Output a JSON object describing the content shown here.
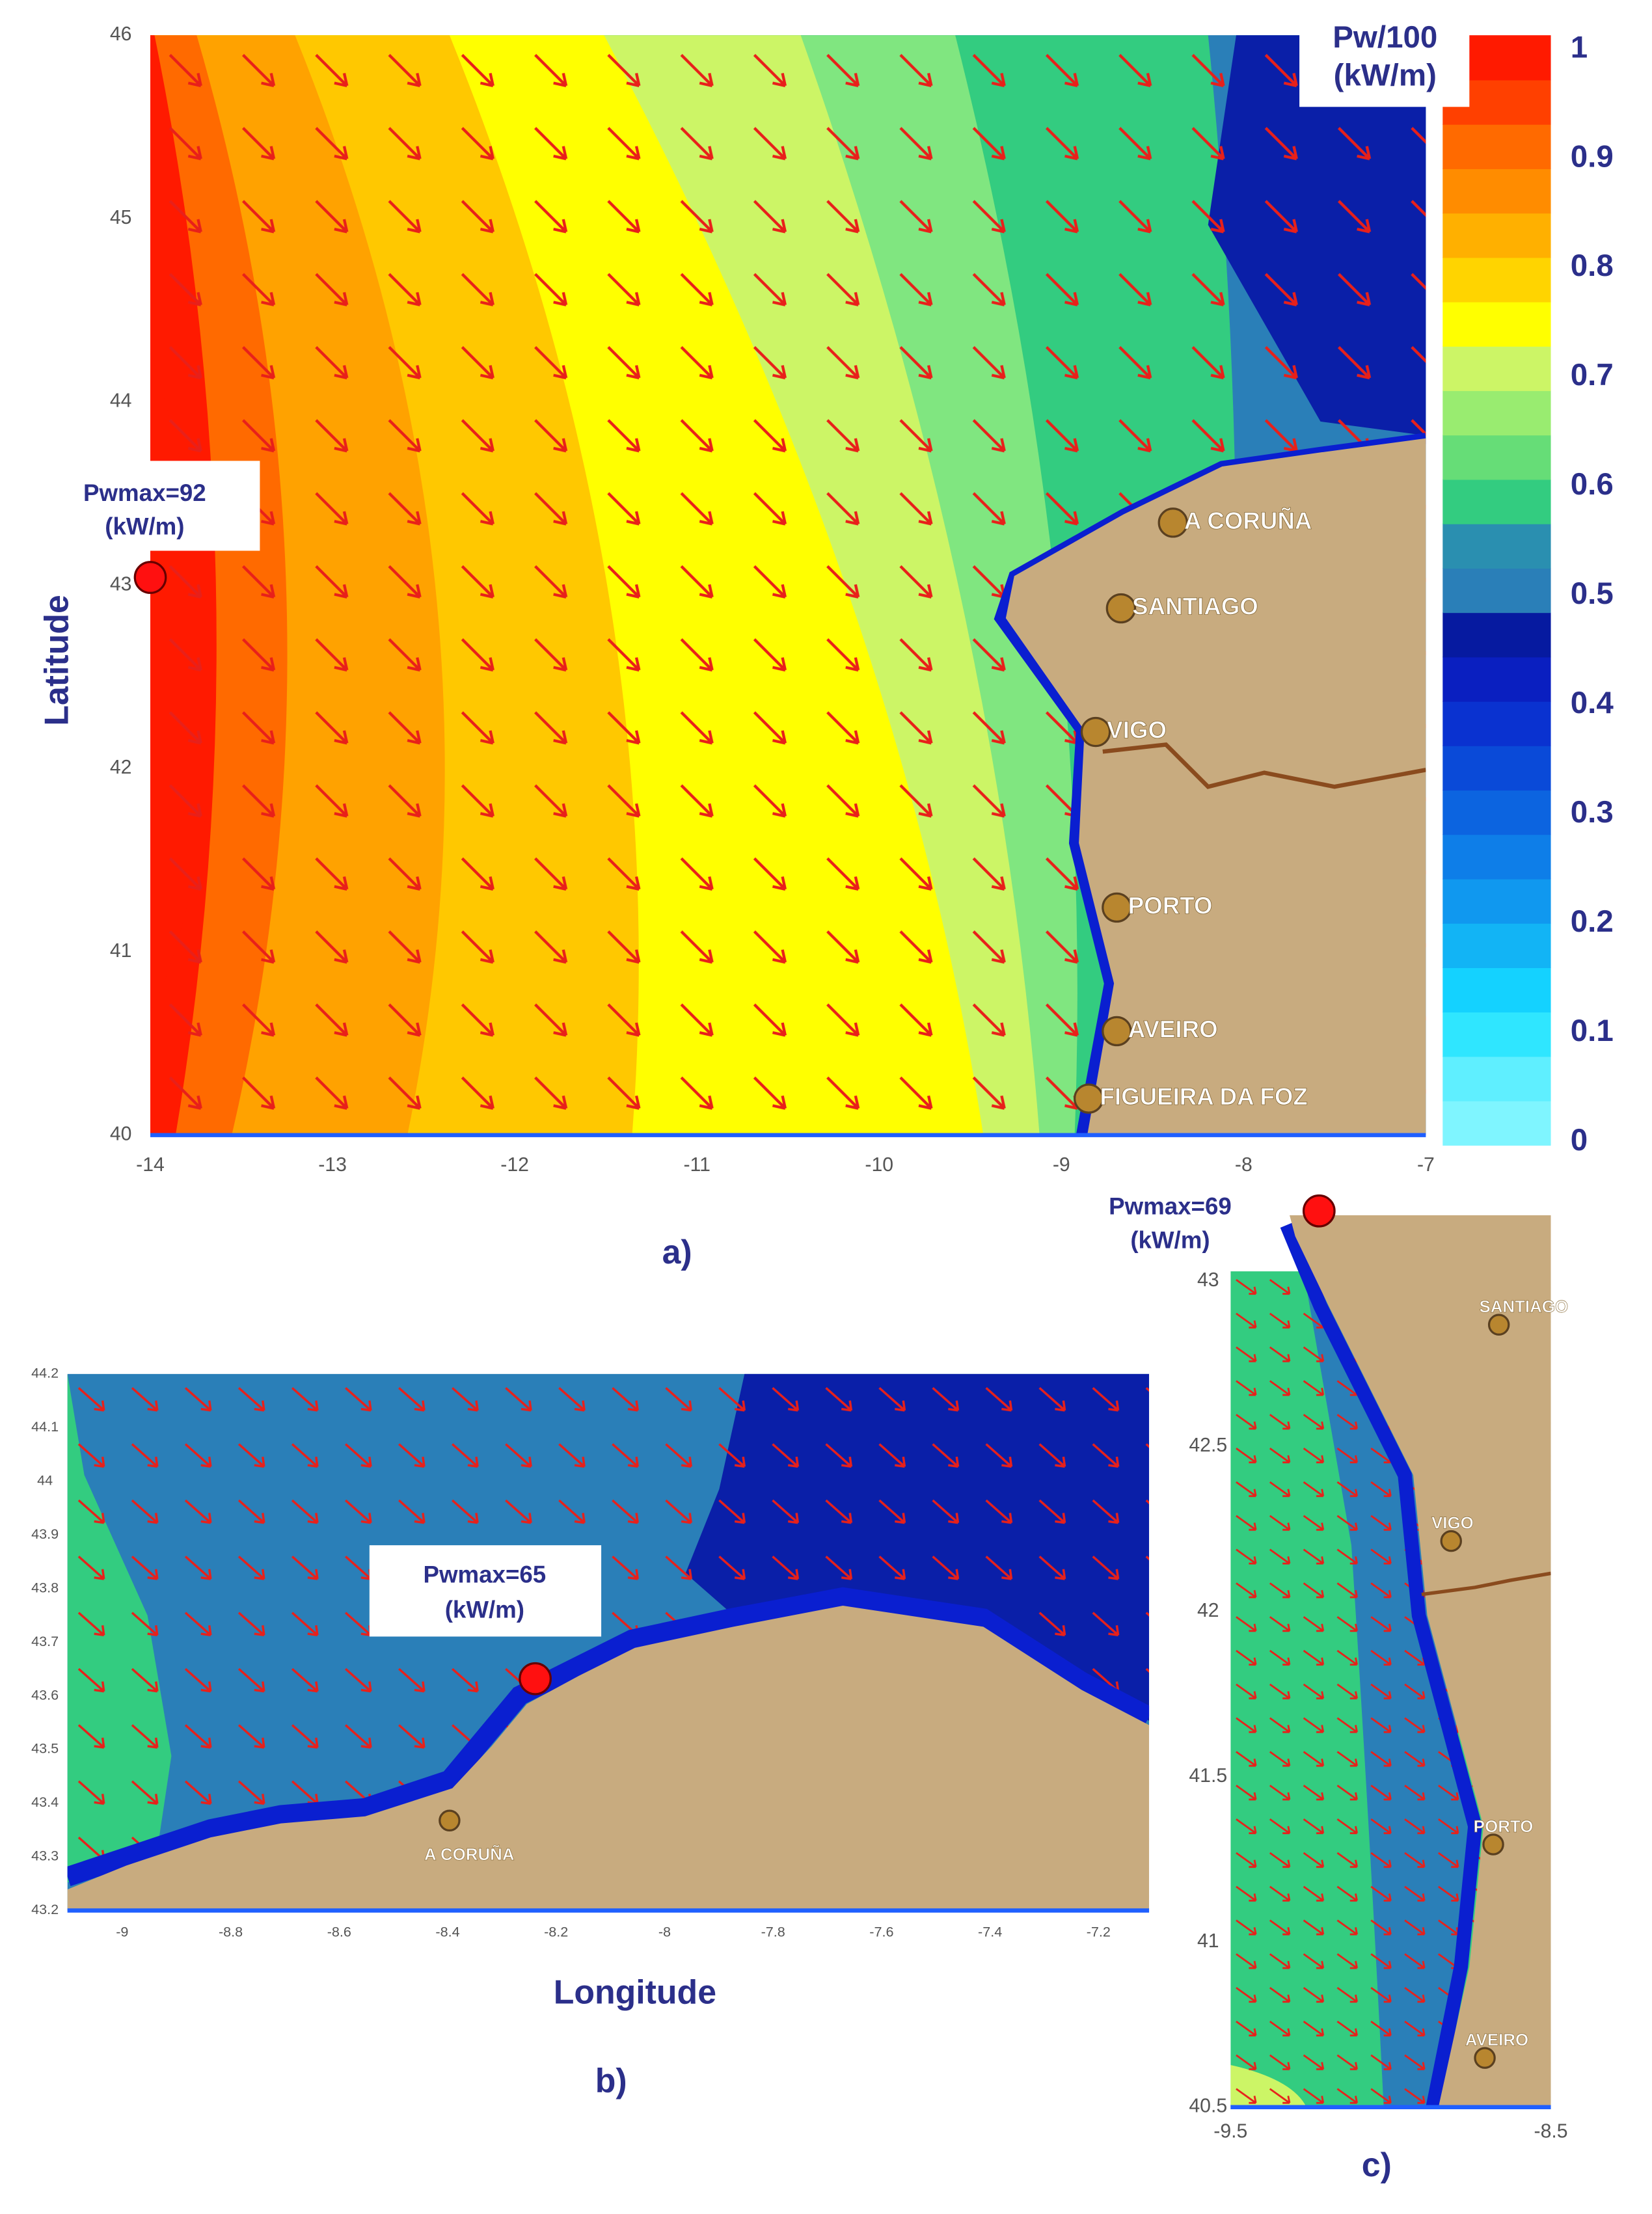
{
  "panel_a": {
    "label": "a)",
    "y_axis_label": "Latitude",
    "xticks": [
      -14,
      -13,
      -12,
      -11,
      -10,
      -9,
      -8,
      -7
    ],
    "yticks": [
      40,
      41,
      42,
      43,
      44,
      45,
      46
    ],
    "annotation": [
      "Pwmax=92",
      "(kW/m)"
    ],
    "cities": [
      "A CORUÑA",
      "SANTIAGO",
      "VIGO",
      "PORTO",
      "AVEIRO",
      "FIGUEIRA DA FOZ"
    ],
    "colorbar_title": [
      "Pw/100",
      "(kW/m)"
    ],
    "colorbar_ticks": [
      1,
      0.9,
      0.8,
      0.7,
      0.6,
      0.5,
      0.4,
      0.3,
      0.2,
      0.1,
      0
    ]
  },
  "panel_b": {
    "label": "b)",
    "x_axis_label": "Longitude",
    "xticks": [
      -9,
      -8.8,
      -8.6,
      -8.4,
      -8.2,
      -8,
      -7.8,
      -7.6,
      -7.4,
      -7.2
    ],
    "yticks": [
      43.2,
      43.3,
      43.4,
      43.5,
      43.6,
      43.7,
      43.8,
      43.9,
      44,
      44.1,
      44.2
    ],
    "annotation": [
      "Pwmax=65",
      "(kW/m)"
    ],
    "cities": [
      "A CORUÑA"
    ]
  },
  "panel_c": {
    "label": "c)",
    "xticks": [
      -9.5,
      -8.5
    ],
    "yticks": [
      40.5,
      41,
      41.5,
      42,
      42.5,
      43
    ],
    "annotation": [
      "Pwmax=69",
      "(kW/m)"
    ],
    "cities": [
      "SANTIAGO",
      "VIGO",
      "PORTO",
      "AVEIRO"
    ]
  }
}
